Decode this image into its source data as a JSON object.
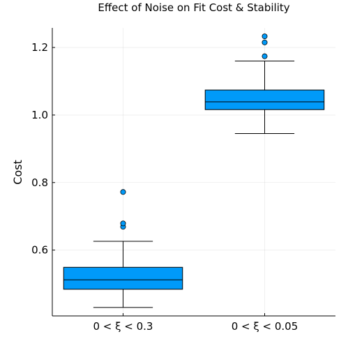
{
  "chart_data": {
    "type": "box",
    "title": "Effect of Noise on Fit Cost & Stability",
    "xlabel": "",
    "ylabel": "Cost",
    "ylim": [
      0.405,
      1.258
    ],
    "yticks": [
      0.6,
      0.8,
      1.0,
      1.2
    ],
    "ytick_labels": [
      "0.6",
      "0.8",
      "1.0",
      "1.2"
    ],
    "grid": true,
    "legend": "none",
    "box_color": "#009af9",
    "categories": [
      "0 < ξ < 0.3",
      "0 < ξ < 0.05"
    ],
    "series": [
      {
        "whisker_low": 0.43,
        "q1": 0.484,
        "median": 0.512,
        "q3": 0.549,
        "whisker_high": 0.626,
        "outliers": [
          0.669,
          0.679,
          0.772
        ]
      },
      {
        "whisker_low": 0.945,
        "q1": 1.016,
        "median": 1.039,
        "q3": 1.074,
        "whisker_high": 1.16,
        "outliers": [
          1.174,
          1.215,
          1.233
        ]
      }
    ]
  }
}
